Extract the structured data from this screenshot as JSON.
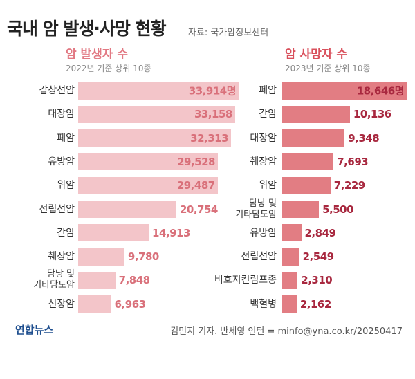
{
  "header": {
    "title": "국내 암 발생·사망 현황",
    "source": "자료: 국가암정보센터"
  },
  "footer": {
    "logo": "연합뉴스",
    "credit": "김민지 기자. 반세영 인턴 = minfo@yna.co.kr/20250417"
  },
  "chart_data": [
    {
      "type": "bar",
      "orientation": "horizontal",
      "title": "암 발생자 수",
      "subtitle": "2022년 기준 상위 10종",
      "categories": [
        "갑상선암",
        "대장암",
        "폐암",
        "유방암",
        "위암",
        "전립선암",
        "간암",
        "췌장암",
        "담낭 및\n기타담도암",
        "신장암"
      ],
      "values": [
        33914,
        33158,
        32313,
        29528,
        29487,
        20754,
        14913,
        9780,
        7848,
        6963
      ],
      "value_labels": [
        "33,914명",
        "33,158",
        "32,313",
        "29,528",
        "29,487",
        "20,754",
        "14,913",
        "9,780",
        "7,848",
        "6,963"
      ],
      "color": "#f3c5c9",
      "label_color": "#d9707a"
    },
    {
      "type": "bar",
      "orientation": "horizontal",
      "title": "암 사망자 수",
      "subtitle": "2023년 기준 상위 10종",
      "categories": [
        "폐암",
        "간암",
        "대장암",
        "췌장암",
        "위암",
        "담낭 및\n기타담도암",
        "유방암",
        "전립선암",
        "비호지킨림프종",
        "백혈병"
      ],
      "values": [
        18646,
        10136,
        9348,
        7693,
        7229,
        5500,
        2849,
        2549,
        2310,
        2162
      ],
      "value_labels": [
        "18,646명",
        "10,136",
        "9,348",
        "7,693",
        "7,229",
        "5,500",
        "2,849",
        "2,549",
        "2,310",
        "2,162"
      ],
      "color": "#e27d83",
      "label_color": "#a8283f"
    }
  ]
}
